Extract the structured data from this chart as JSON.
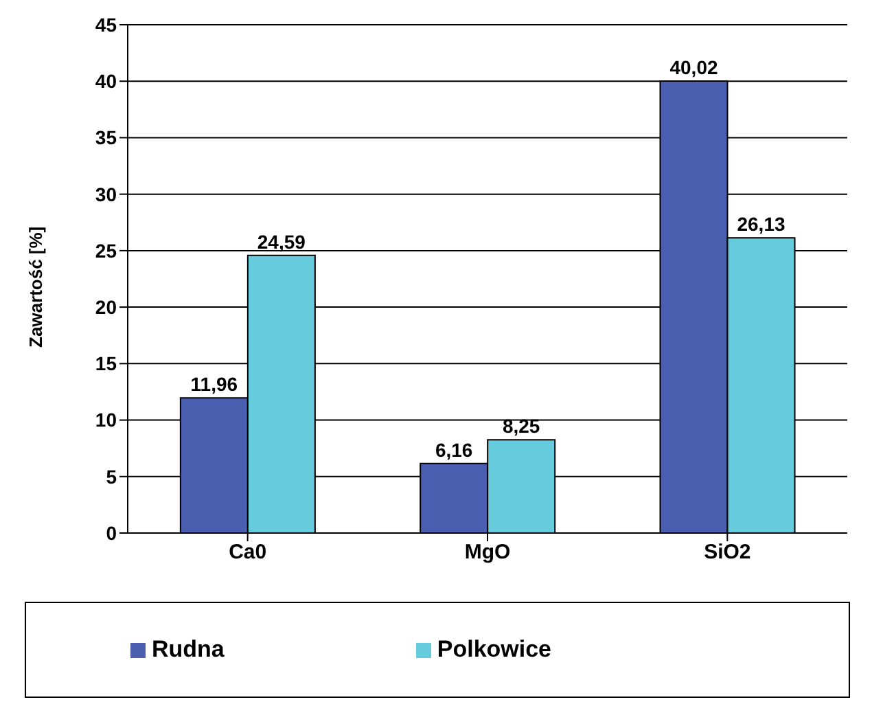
{
  "chart_data": {
    "type": "bar",
    "ylabel": "Zawartość [%]",
    "categories": [
      "Ca0",
      "MgO",
      "SiO2"
    ],
    "series": [
      {
        "name": "Rudna",
        "color": "#4a5fb0",
        "values": [
          11.96,
          6.16,
          40.02
        ],
        "value_labels": [
          "11,96",
          "6,16",
          "40,02"
        ]
      },
      {
        "name": "Polkowice",
        "color": "#66ccdd",
        "values": [
          24.59,
          8.25,
          26.13
        ],
        "value_labels": [
          "24,59",
          "8,25",
          "26,13"
        ]
      }
    ],
    "ylim": [
      0,
      45
    ],
    "yticks": [
      0,
      5,
      10,
      15,
      20,
      25,
      30,
      35,
      40,
      45
    ],
    "grid": "y",
    "legend": "bottom"
  }
}
